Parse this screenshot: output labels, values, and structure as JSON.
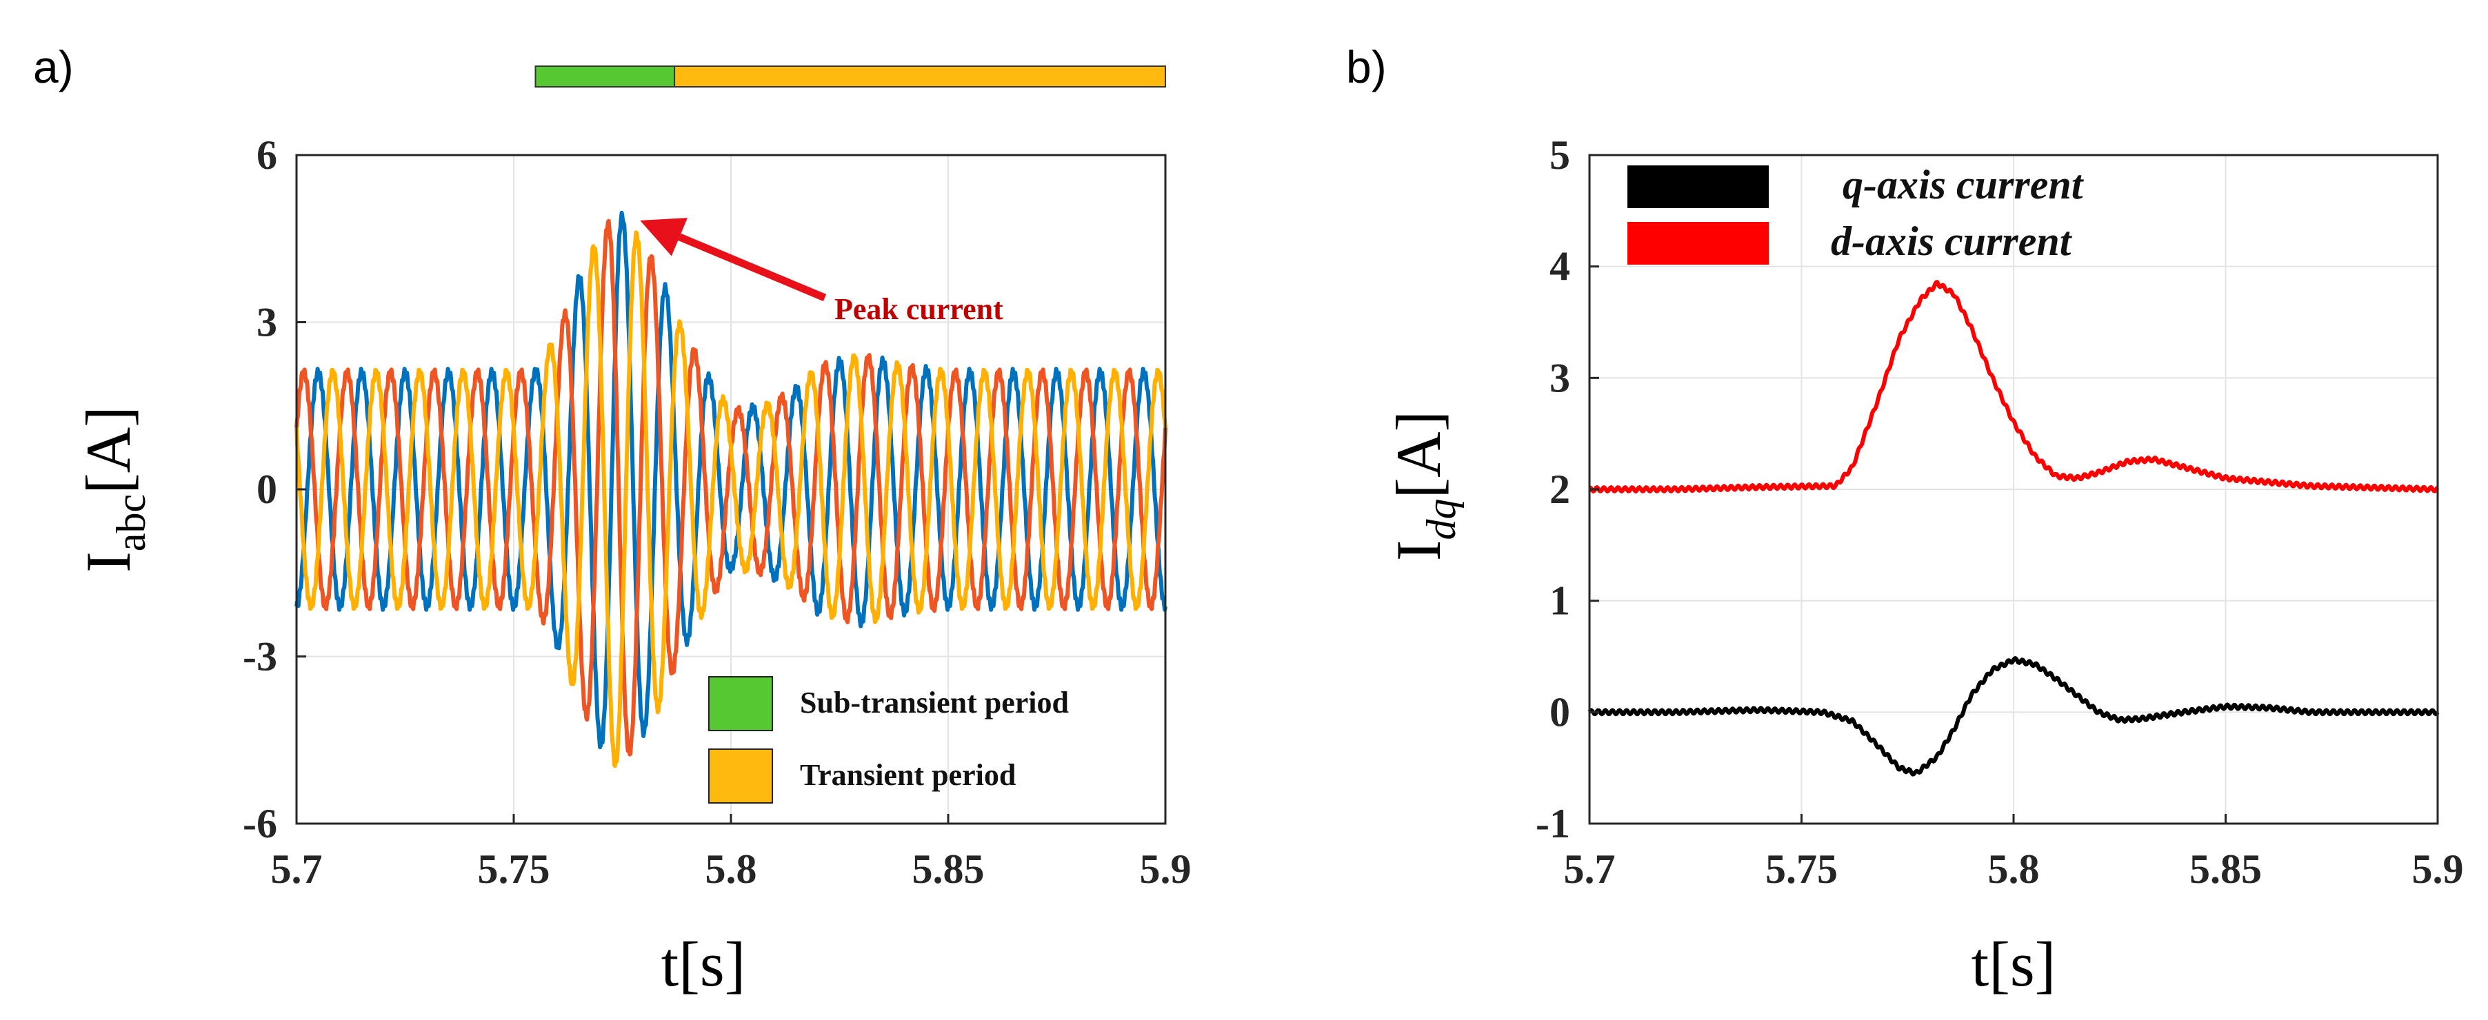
{
  "panels": {
    "a": {
      "label": "a)"
    },
    "b": {
      "label": "b)"
    }
  },
  "chart_data": [
    {
      "type": "line",
      "panel": "a",
      "xlabel": "t[s]",
      "ylabel": {
        "main": "I",
        "sub": "abc",
        "unit": "[A]"
      },
      "xlim": [
        5.7,
        5.9
      ],
      "ylim": [
        -6,
        6
      ],
      "xticks": [
        5.7,
        5.75,
        5.8,
        5.85,
        5.9
      ],
      "xtick_labels": [
        "5.7",
        "5.75",
        "5.8",
        "5.85",
        "5.9"
      ],
      "yticks": [
        -6,
        -3,
        0,
        3,
        6
      ],
      "ytick_labels": [
        "-6",
        "-3",
        "0",
        "3",
        "6"
      ],
      "grid": true,
      "colors": {
        "phase_a": "#0072BD",
        "phase_b": "#EE5522",
        "phase_c": "#FFB000"
      },
      "signal_model": {
        "frequency_hz": 100,
        "steady_amplitude_A": 2.1,
        "phase_offsets_deg": [
          -90,
          30,
          150
        ],
        "envelope_points": [
          [
            5.7,
            2.1
          ],
          [
            5.755,
            2.1
          ],
          [
            5.76,
            2.8
          ],
          [
            5.765,
            3.8
          ],
          [
            5.77,
            4.6
          ],
          [
            5.774,
            5.0
          ],
          [
            5.778,
            4.6
          ],
          [
            5.783,
            4.0
          ],
          [
            5.788,
            3.0
          ],
          [
            5.795,
            2.0
          ],
          [
            5.8,
            1.4
          ],
          [
            5.808,
            1.5
          ],
          [
            5.815,
            1.8
          ],
          [
            5.82,
            2.2
          ],
          [
            5.83,
            2.4
          ],
          [
            5.84,
            2.2
          ],
          [
            5.85,
            2.1
          ],
          [
            5.9,
            2.1
          ]
        ]
      },
      "peak_annotation": {
        "text": "Peak current",
        "x": 5.774,
        "y": 5.0
      },
      "periods": [
        {
          "name": "Sub-transient period",
          "start": 5.755,
          "end": 5.79,
          "color": "#55C832"
        },
        {
          "name": "Transient period",
          "start": 5.787,
          "end": 5.9,
          "color": "#FFB90F"
        }
      ],
      "legend": {
        "placement": "bottom-right",
        "entries": [
          {
            "label": "Sub-transient period",
            "color": "#55C832"
          },
          {
            "label": "Transient period",
            "color": "#FFB90F"
          }
        ]
      }
    },
    {
      "type": "line",
      "panel": "b",
      "xlabel": "t[s]",
      "ylabel": {
        "main": "I",
        "sub": "dq",
        "unit": "[A]"
      },
      "xlim": [
        5.7,
        5.9
      ],
      "ylim": [
        -1,
        5
      ],
      "xticks": [
        5.7,
        5.75,
        5.8,
        5.85,
        5.9
      ],
      "xtick_labels": [
        "5.7",
        "5.75",
        "5.8",
        "5.85",
        "5.9"
      ],
      "yticks": [
        -1,
        0,
        1,
        2,
        3,
        4,
        5
      ],
      "ytick_labels": [
        "-1",
        "0",
        "1",
        "2",
        "3",
        "4",
        "5"
      ],
      "grid": true,
      "legend": {
        "placement": "top-left"
      },
      "series": [
        {
          "name": "q-axis current",
          "color": "#000000",
          "points": [
            [
              5.7,
              0.0
            ],
            [
              5.72,
              0.0
            ],
            [
              5.74,
              0.02
            ],
            [
              5.755,
              0.0
            ],
            [
              5.762,
              -0.08
            ],
            [
              5.768,
              -0.3
            ],
            [
              5.773,
              -0.5
            ],
            [
              5.777,
              -0.55
            ],
            [
              5.782,
              -0.4
            ],
            [
              5.786,
              -0.15
            ],
            [
              5.79,
              0.15
            ],
            [
              5.795,
              0.38
            ],
            [
              5.8,
              0.47
            ],
            [
              5.805,
              0.43
            ],
            [
              5.81,
              0.3
            ],
            [
              5.815,
              0.15
            ],
            [
              5.82,
              0.0
            ],
            [
              5.825,
              -0.07
            ],
            [
              5.83,
              -0.06
            ],
            [
              5.84,
              0.0
            ],
            [
              5.85,
              0.05
            ],
            [
              5.86,
              0.04
            ],
            [
              5.87,
              0.0
            ],
            [
              5.9,
              0.0
            ]
          ]
        },
        {
          "name": "d-axis current",
          "color": "#FF0000",
          "points": [
            [
              5.7,
              2.0
            ],
            [
              5.72,
              2.0
            ],
            [
              5.74,
              2.02
            ],
            [
              5.758,
              2.03
            ],
            [
              5.762,
              2.2
            ],
            [
              5.768,
              2.8
            ],
            [
              5.773,
              3.35
            ],
            [
              5.778,
              3.7
            ],
            [
              5.782,
              3.85
            ],
            [
              5.786,
              3.75
            ],
            [
              5.79,
              3.45
            ],
            [
              5.795,
              3.0
            ],
            [
              5.8,
              2.6
            ],
            [
              5.805,
              2.3
            ],
            [
              5.81,
              2.12
            ],
            [
              5.815,
              2.1
            ],
            [
              5.82,
              2.15
            ],
            [
              5.827,
              2.25
            ],
            [
              5.833,
              2.27
            ],
            [
              5.84,
              2.2
            ],
            [
              5.85,
              2.1
            ],
            [
              5.87,
              2.03
            ],
            [
              5.9,
              2.0
            ]
          ]
        }
      ]
    }
  ]
}
